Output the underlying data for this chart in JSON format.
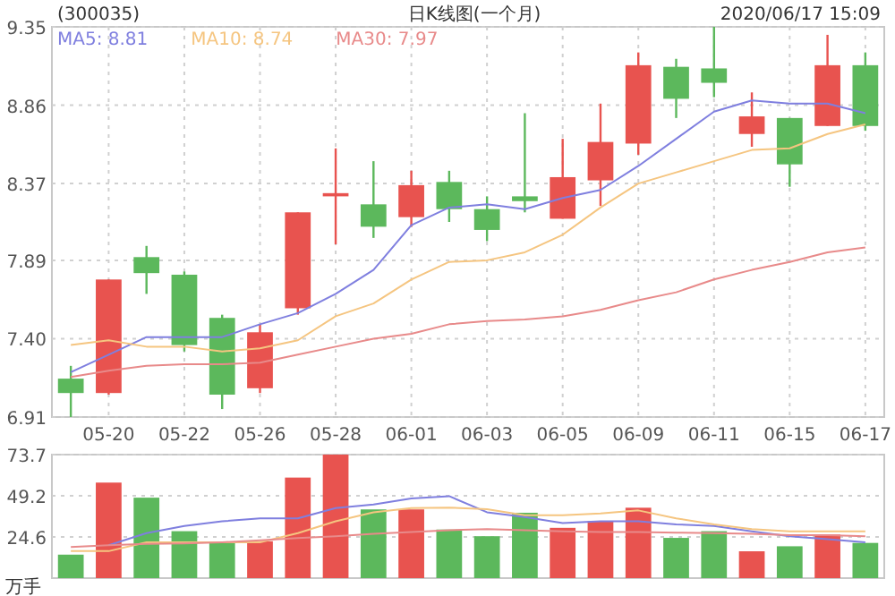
{
  "chart_data": [
    {
      "type": "candlestick",
      "title": "(300035)",
      "subtitle": "日K线图(一个月)",
      "annotations": [
        "2020/06/17 15:09"
      ],
      "categories": [
        null,
        "05-20",
        null,
        "05-22",
        null,
        "05-26",
        null,
        "05-28",
        null,
        "06-01",
        null,
        "06-03",
        null,
        "06-05",
        null,
        "06-09",
        null,
        "06-11",
        null,
        "06-15",
        null,
        "06-17"
      ],
      "ohlc": [
        [
          7.15,
          7.23,
          6.91,
          7.06
        ],
        [
          7.06,
          7.77,
          7.05,
          7.77
        ],
        [
          7.91,
          7.98,
          7.68,
          7.81
        ],
        [
          7.8,
          7.82,
          7.32,
          7.36
        ],
        [
          7.53,
          7.55,
          6.96,
          7.05
        ],
        [
          7.09,
          7.49,
          7.06,
          7.44
        ],
        [
          7.59,
          8.19,
          7.55,
          8.19
        ],
        [
          8.29,
          8.59,
          7.99,
          8.31
        ],
        [
          8.24,
          8.51,
          8.03,
          8.1
        ],
        [
          8.16,
          8.45,
          8.1,
          8.36
        ],
        [
          8.38,
          8.45,
          8.13,
          8.21
        ],
        [
          8.21,
          8.29,
          8.01,
          8.08
        ],
        [
          8.29,
          8.81,
          8.19,
          8.26
        ],
        [
          8.15,
          8.65,
          8.15,
          8.41
        ],
        [
          8.39,
          8.87,
          8.23,
          8.63
        ],
        [
          8.62,
          9.19,
          8.55,
          9.11
        ],
        [
          9.1,
          9.15,
          8.78,
          8.9
        ],
        [
          9.09,
          9.35,
          8.91,
          9.0
        ],
        [
          8.68,
          8.94,
          8.6,
          8.79
        ],
        [
          8.78,
          8.78,
          8.35,
          8.49
        ],
        [
          8.73,
          9.3,
          8.73,
          9.11
        ],
        [
          9.11,
          9.19,
          8.7,
          8.73
        ]
      ],
      "colors": [
        "#5cb85c",
        "#e8534f",
        "#5cb85c",
        "#5cb85c",
        "#5cb85c",
        "#e8534f",
        "#e8534f",
        "#e8534f",
        "#5cb85c",
        "#e8534f",
        "#5cb85c",
        "#5cb85c",
        "#5cb85c",
        "#e8534f",
        "#e8534f",
        "#e8534f",
        "#5cb85c",
        "#5cb85c",
        "#e8534f",
        "#5cb85c",
        "#e8534f",
        "#5cb85c"
      ],
      "series": [
        {
          "type": "line",
          "name": "MA5: 8.81",
          "color": "#7f7fdf",
          "values": [
            7.19,
            7.3,
            7.41,
            7.41,
            7.41,
            7.49,
            7.56,
            7.68,
            7.83,
            8.11,
            8.22,
            8.24,
            8.21,
            8.28,
            8.33,
            8.48,
            8.65,
            8.82,
            8.89,
            8.87,
            8.87,
            8.81
          ]
        },
        {
          "type": "line",
          "name": "MA10: 8.74",
          "color": "#f5c580",
          "values": [
            7.36,
            7.39,
            7.35,
            7.35,
            7.32,
            7.34,
            7.39,
            7.54,
            7.62,
            7.77,
            7.88,
            7.89,
            7.94,
            8.05,
            8.22,
            8.37,
            8.44,
            8.51,
            8.58,
            8.59,
            8.68,
            8.74
          ]
        },
        {
          "type": "line",
          "name": "MA30: 7.97",
          "color": "#e88a8a",
          "values": [
            7.16,
            7.2,
            7.23,
            7.24,
            7.24,
            7.25,
            7.3,
            7.35,
            7.4,
            7.43,
            7.49,
            7.51,
            7.52,
            7.54,
            7.58,
            7.64,
            7.69,
            7.77,
            7.83,
            7.88,
            7.94,
            7.97
          ]
        }
      ],
      "ylim": [
        6.91,
        9.35
      ],
      "yticks": [
        6.91,
        {
          "value": 7.4,
          "label": "7.40"
        },
        7.89,
        8.37,
        8.86,
        9.35
      ],
      "grid": true,
      "legend": "top left"
    },
    {
      "type": "bar",
      "ylabel": "万手",
      "categories": [
        null,
        null,
        null,
        null,
        null,
        null,
        null,
        null,
        null,
        null,
        null,
        null,
        null,
        null,
        null,
        null,
        null,
        null,
        null,
        null,
        null,
        null
      ],
      "values": [
        14,
        57,
        48,
        28,
        21,
        22,
        60,
        73.7,
        41,
        41,
        29,
        25,
        39,
        30,
        34,
        42,
        24,
        28,
        16,
        19,
        26,
        21
      ],
      "colors": [
        "#5cb85c",
        "#e8534f",
        "#5cb85c",
        "#5cb85c",
        "#5cb85c",
        "#e8534f",
        "#e8534f",
        "#e8534f",
        "#5cb85c",
        "#e8534f",
        "#5cb85c",
        "#5cb85c",
        "#5cb85c",
        "#e8534f",
        "#e8534f",
        "#e8534f",
        "#5cb85c",
        "#5cb85c",
        "#e8534f",
        "#5cb85c",
        "#e8534f",
        "#5cb85c"
      ],
      "series": [
        {
          "type": "line",
          "color": "#7f7fdf",
          "values": [
            null,
            19.6,
            26.8,
            31.1,
            33.9,
            35.7,
            35.7,
            41.8,
            43.9,
            47.5,
            48.9,
            39.3,
            36.4,
            32.9,
            33.9,
            33.9,
            32.1,
            31.1,
            27.9,
            25.0,
            23.2,
            21.4
          ]
        },
        {
          "type": "line",
          "color": "#f5c580",
          "values": [
            16.1,
            16.1,
            21.4,
            21.4,
            21.4,
            21.4,
            26.8,
            33.9,
            39.3,
            41.8,
            42.1,
            41.1,
            37.5,
            37.5,
            38.6,
            40.4,
            35.7,
            32.1,
            29.3,
            27.9,
            27.9,
            27.9
          ]
        },
        {
          "type": "line",
          "color": "#e88a8a",
          "values": [
            18.6,
            19.6,
            20.4,
            20.7,
            21.4,
            22.5,
            23.9,
            25.0,
            26.4,
            27.5,
            28.6,
            29.3,
            28.6,
            27.9,
            27.5,
            27.5,
            27.1,
            26.8,
            26.4,
            25.7,
            25.7,
            25.0
          ]
        }
      ],
      "ylim": [
        0,
        73.7
      ],
      "yticks": [
        24.6,
        49.2,
        73.7
      ],
      "grid": true,
      "tick_labels": "y"
    }
  ]
}
